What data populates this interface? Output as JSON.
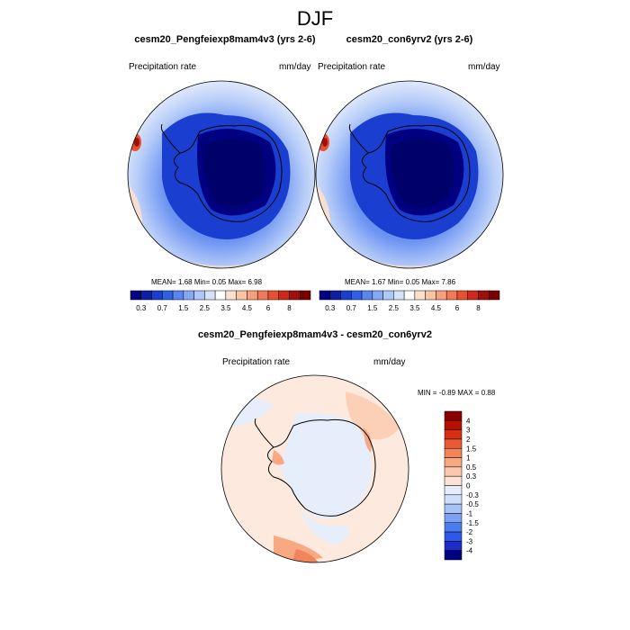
{
  "figure_title": "DJF",
  "panels": [
    {
      "title": "cesm20_Pengfeiexp8mam4v3 (yrs 2-6)",
      "left_label": "Precipitation rate",
      "right_label": "mm/day",
      "stats": {
        "mean_label": "MEAN=",
        "mean": "1.68",
        "min_label": "Min=",
        "min": "0.05",
        "max_label": "Max=",
        "max": "6.98"
      }
    },
    {
      "title": "cesm20_con6yrv2 (yrs 2-6)",
      "left_label": "Precipitation rate",
      "right_label": "mm/day",
      "stats": {
        "mean_label": "MEAN=",
        "mean": "1.67",
        "min_label": "Min=",
        "min": "0.05",
        "max_label": "Max=",
        "max": "7.86"
      }
    }
  ],
  "precip_colorbar": {
    "colors": [
      "#000080",
      "#0d1fa0",
      "#1a3fd0",
      "#3060e8",
      "#5a86f0",
      "#85a8f5",
      "#adc7f8",
      "#d4e2fa",
      "#ffffff",
      "#fde0cd",
      "#fcc3a3",
      "#f8a07e",
      "#f27a58",
      "#e8502f",
      "#d0281a",
      "#a00f0c",
      "#7a0000"
    ],
    "tick_labels": [
      "0.3",
      "0.7",
      "1.5",
      "2.5",
      "3.5",
      "4.5",
      "6",
      "8"
    ]
  },
  "diff_panel": {
    "title": "cesm20_Pengfeiexp8mam4v3 - cesm20_con6yrv2",
    "left_label": "Precipitation rate",
    "right_label": "mm/day",
    "stats_label": "MIN = -0.89 MAX = 0.88"
  },
  "diff_colorbar": {
    "colors": [
      "#000080",
      "#1e2dc8",
      "#2e58e6",
      "#4a7eee",
      "#7ea2f3",
      "#a9c3f7",
      "#cfdefa",
      "#e6eefb",
      "#fde3d3",
      "#fbc8ad",
      "#f9a982",
      "#f2845c",
      "#e85a34",
      "#d63012",
      "#b51000",
      "#8a0000"
    ],
    "tick_labels": [
      "4",
      "3",
      "2",
      "1.5",
      "1",
      "0.5",
      "0.3",
      "0",
      "-0.3",
      "-0.5",
      "-1",
      "-1.5",
      "-2",
      "-3",
      "-4"
    ]
  }
}
